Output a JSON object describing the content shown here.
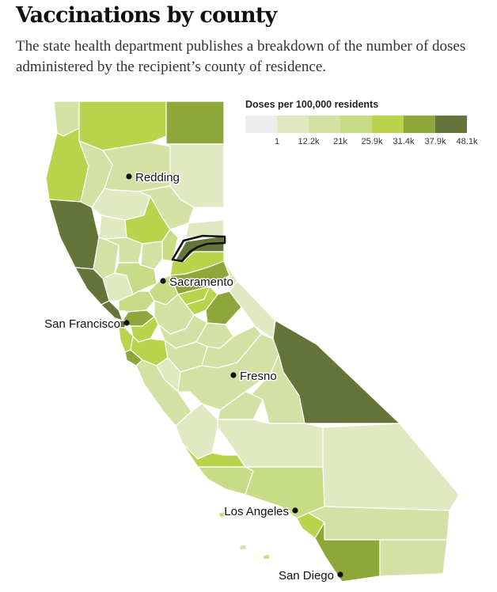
{
  "title": "Vaccinations by county",
  "subtitle": "The state health department publishes a breakdown of the number of doses administered by the recipient’s county of residence.",
  "legend": {
    "title": "Doses per 100,000 residents",
    "ticks": [
      "1",
      "12.2k",
      "21k",
      "25.9k",
      "31.4k",
      "37.9k",
      "48.1k"
    ],
    "colors": [
      "#eeeeee",
      "#e1e9c2",
      "#d3e1a4",
      "#c8dc87",
      "#b9d44c",
      "#8fa63b",
      "#65753a"
    ]
  },
  "cities": {
    "redding": "Redding",
    "sacramento": "Sacramento",
    "san_francisco": "San Francisco",
    "fresno": "Fresno",
    "los_angeles": "Los Angeles",
    "san_diego": "San Diego"
  },
  "highlighted_county_color": "#111111"
}
